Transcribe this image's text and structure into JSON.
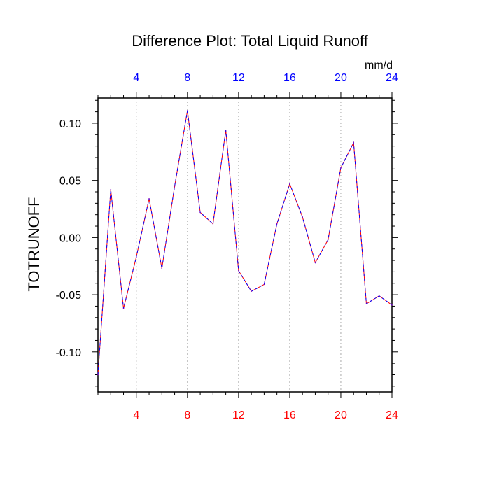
{
  "chart_data": {
    "type": "line",
    "title": "Difference Plot: Total Liquid Runoff",
    "units": "mm/d",
    "ylabel": "TOTRUNOFF",
    "xlim": [
      1,
      24
    ],
    "ylim": [
      -0.135,
      0.122
    ],
    "x_ticks": [
      4,
      8,
      12,
      16,
      20,
      24
    ],
    "x_tick_labels": [
      "4",
      "8",
      "12",
      "16",
      "20",
      "24"
    ],
    "y_ticks": [
      0.1,
      0.05,
      0.0,
      -0.05,
      -0.1
    ],
    "y_tick_labels": [
      "0.10",
      "0.05",
      "0.00",
      "-0.05",
      "-0.10"
    ],
    "grid": "vertical dashed at major x ticks",
    "x": [
      1,
      2,
      3,
      4,
      5,
      6,
      7,
      8,
      9,
      10,
      11,
      12,
      13,
      14,
      15,
      16,
      17,
      18,
      19,
      20,
      21,
      22,
      23,
      24
    ],
    "series": [
      {
        "values": [
          -0.12,
          0.042,
          -0.062,
          -0.017,
          0.034,
          -0.027,
          0.045,
          0.111,
          0.022,
          0.012,
          0.094,
          -0.029,
          -0.047,
          -0.041,
          0.012,
          0.047,
          0.018,
          -0.022,
          -0.002,
          0.061,
          0.083,
          -0.058,
          -0.051,
          -0.059
        ]
      }
    ],
    "colors": {
      "top_axis_labels": "#0000ff",
      "bottom_axis_labels": "#ff0000",
      "line_primary": "#0000ff",
      "line_secondary": "#ff0000",
      "grid": "#aaaaaa",
      "axis": "#000000"
    }
  }
}
